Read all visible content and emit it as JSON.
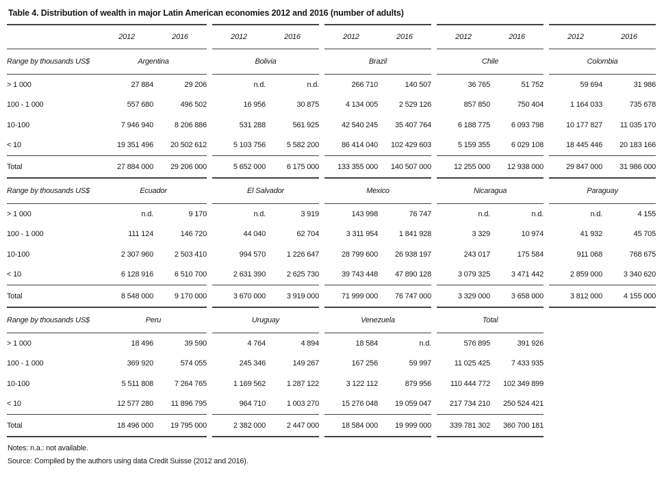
{
  "page": {
    "title": "Table 4. Distribution of wealth in major Latin American economies 2012 and 2016 (number of adults)",
    "notes": "Notes: n.a.: not available.",
    "source": "Source: Compiled by the authors using data Credit Suisse (2012 and 2016)."
  },
  "table": {
    "years": [
      "2012",
      "2016"
    ],
    "row_label_header": "Range by thousands US$",
    "blocks": [
      {
        "countries": [
          "Argentina",
          "Bolivia",
          "Brazil",
          "Chile",
          "Colombia"
        ],
        "rows": [
          {
            "label": "> 1 000",
            "values": [
              "27 884",
              "29 206",
              "n.d.",
              "n.d.",
              "266 710",
              "140 507",
              "36 765",
              "51 752",
              "59 694",
              "31 986"
            ]
          },
          {
            "label": "100 - 1 000",
            "values": [
              "557 680",
              "496 502",
              "16 956",
              "30 875",
              "4 134 005",
              "2 529 126",
              "857 850",
              "750 404",
              "1 164 033",
              "735 678"
            ]
          },
          {
            "label": "10-100",
            "values": [
              "7 946 940",
              "8 206 886",
              "531 288",
              "561 925",
              "42 540 245",
              "35 407 764",
              "6 188 775",
              "6 093 798",
              "10 177 827",
              "11 035 170"
            ]
          },
          {
            "label": "< 10",
            "values": [
              "19 351 496",
              "20 502 612",
              "5 103 756",
              "5 582 200",
              "86 414 040",
              "102 429 603",
              "5 159 355",
              "6 029 108",
              "18 445 446",
              "20 183 166"
            ]
          },
          {
            "label": "Total",
            "is_total": true,
            "values": [
              "27 884 000",
              "29 206 000",
              "5 652 000",
              "6 175 000",
              "133 355 000",
              "140 507 000",
              "12 255 000",
              "12 938 000",
              "29 847 000",
              "31 986 000"
            ]
          }
        ]
      },
      {
        "countries": [
          "Ecuador",
          "El Salvador",
          "Mexico",
          "Nicaragua",
          "Paraguay"
        ],
        "rows": [
          {
            "label": "> 1 000",
            "values": [
              "n.d.",
              "9 170",
              "n.d.",
              "3 919",
              "143 998",
              "76 747",
              "n.d.",
              "n.d.",
              "n.d.",
              "4 155"
            ]
          },
          {
            "label": "100 - 1 000",
            "values": [
              "111 124",
              "146 720",
              "44 040",
              "62 704",
              "3 311 954",
              "1 841 928",
              "3 329",
              "10 974",
              "41 932",
              "45 705"
            ]
          },
          {
            "label": "10-100",
            "values": [
              "2 307 960",
              "2 503 410",
              "994 570",
              "1 226 647",
              "28 799 600",
              "26 938 197",
              "243 017",
              "175 584",
              "911 068",
              "768 675"
            ]
          },
          {
            "label": "< 10",
            "values": [
              "6 128 916",
              "6 510 700",
              "2 631 390",
              "2 625 730",
              "39 743 448",
              "47 890 128",
              "3 079 325",
              "3 471 442",
              "2 859 000",
              "3 340 620"
            ]
          },
          {
            "label": "Total",
            "is_total": true,
            "values": [
              "8 548 000",
              "9 170 000",
              "3 670 000",
              "3 919 000",
              "71 999 000",
              "76 747 000",
              "3 329 000",
              "3 658 000",
              "3 812 000",
              "4 155 000"
            ]
          }
        ]
      },
      {
        "countries": [
          "Peru",
          "Uruguay",
          "Venezuela",
          "Total"
        ],
        "rows": [
          {
            "label": "> 1 000",
            "values": [
              "18 496",
              "39 590",
              "4 764",
              "4 894",
              "18 584",
              "n.d.",
              "576 895",
              "391 926"
            ]
          },
          {
            "label": "100 - 1 000",
            "values": [
              "369 920",
              "574 055",
              "245 346",
              "149 267",
              "167 256",
              "59 997",
              "11 025 425",
              "7 433 935"
            ]
          },
          {
            "label": "10-100",
            "values": [
              "5 511 808",
              "7 264 765",
              "1 169 562",
              "1 287 122",
              "3 122 112",
              "879 956",
              "110 444 772",
              "102 349 899"
            ]
          },
          {
            "label": "< 10",
            "values": [
              "12 577 280",
              "11 896 795",
              "964 710",
              "1 003 270",
              "15 276 048",
              "19 059 047",
              "217 734 210",
              "250 524 421"
            ]
          },
          {
            "label": "Total",
            "is_total": true,
            "values": [
              "18 496 000",
              "19 795 000",
              "2 382 000",
              "2 447 000",
              "18 584 000",
              "19 999 000",
              "339 781 302",
              "360 700 181"
            ]
          }
        ]
      }
    ]
  }
}
